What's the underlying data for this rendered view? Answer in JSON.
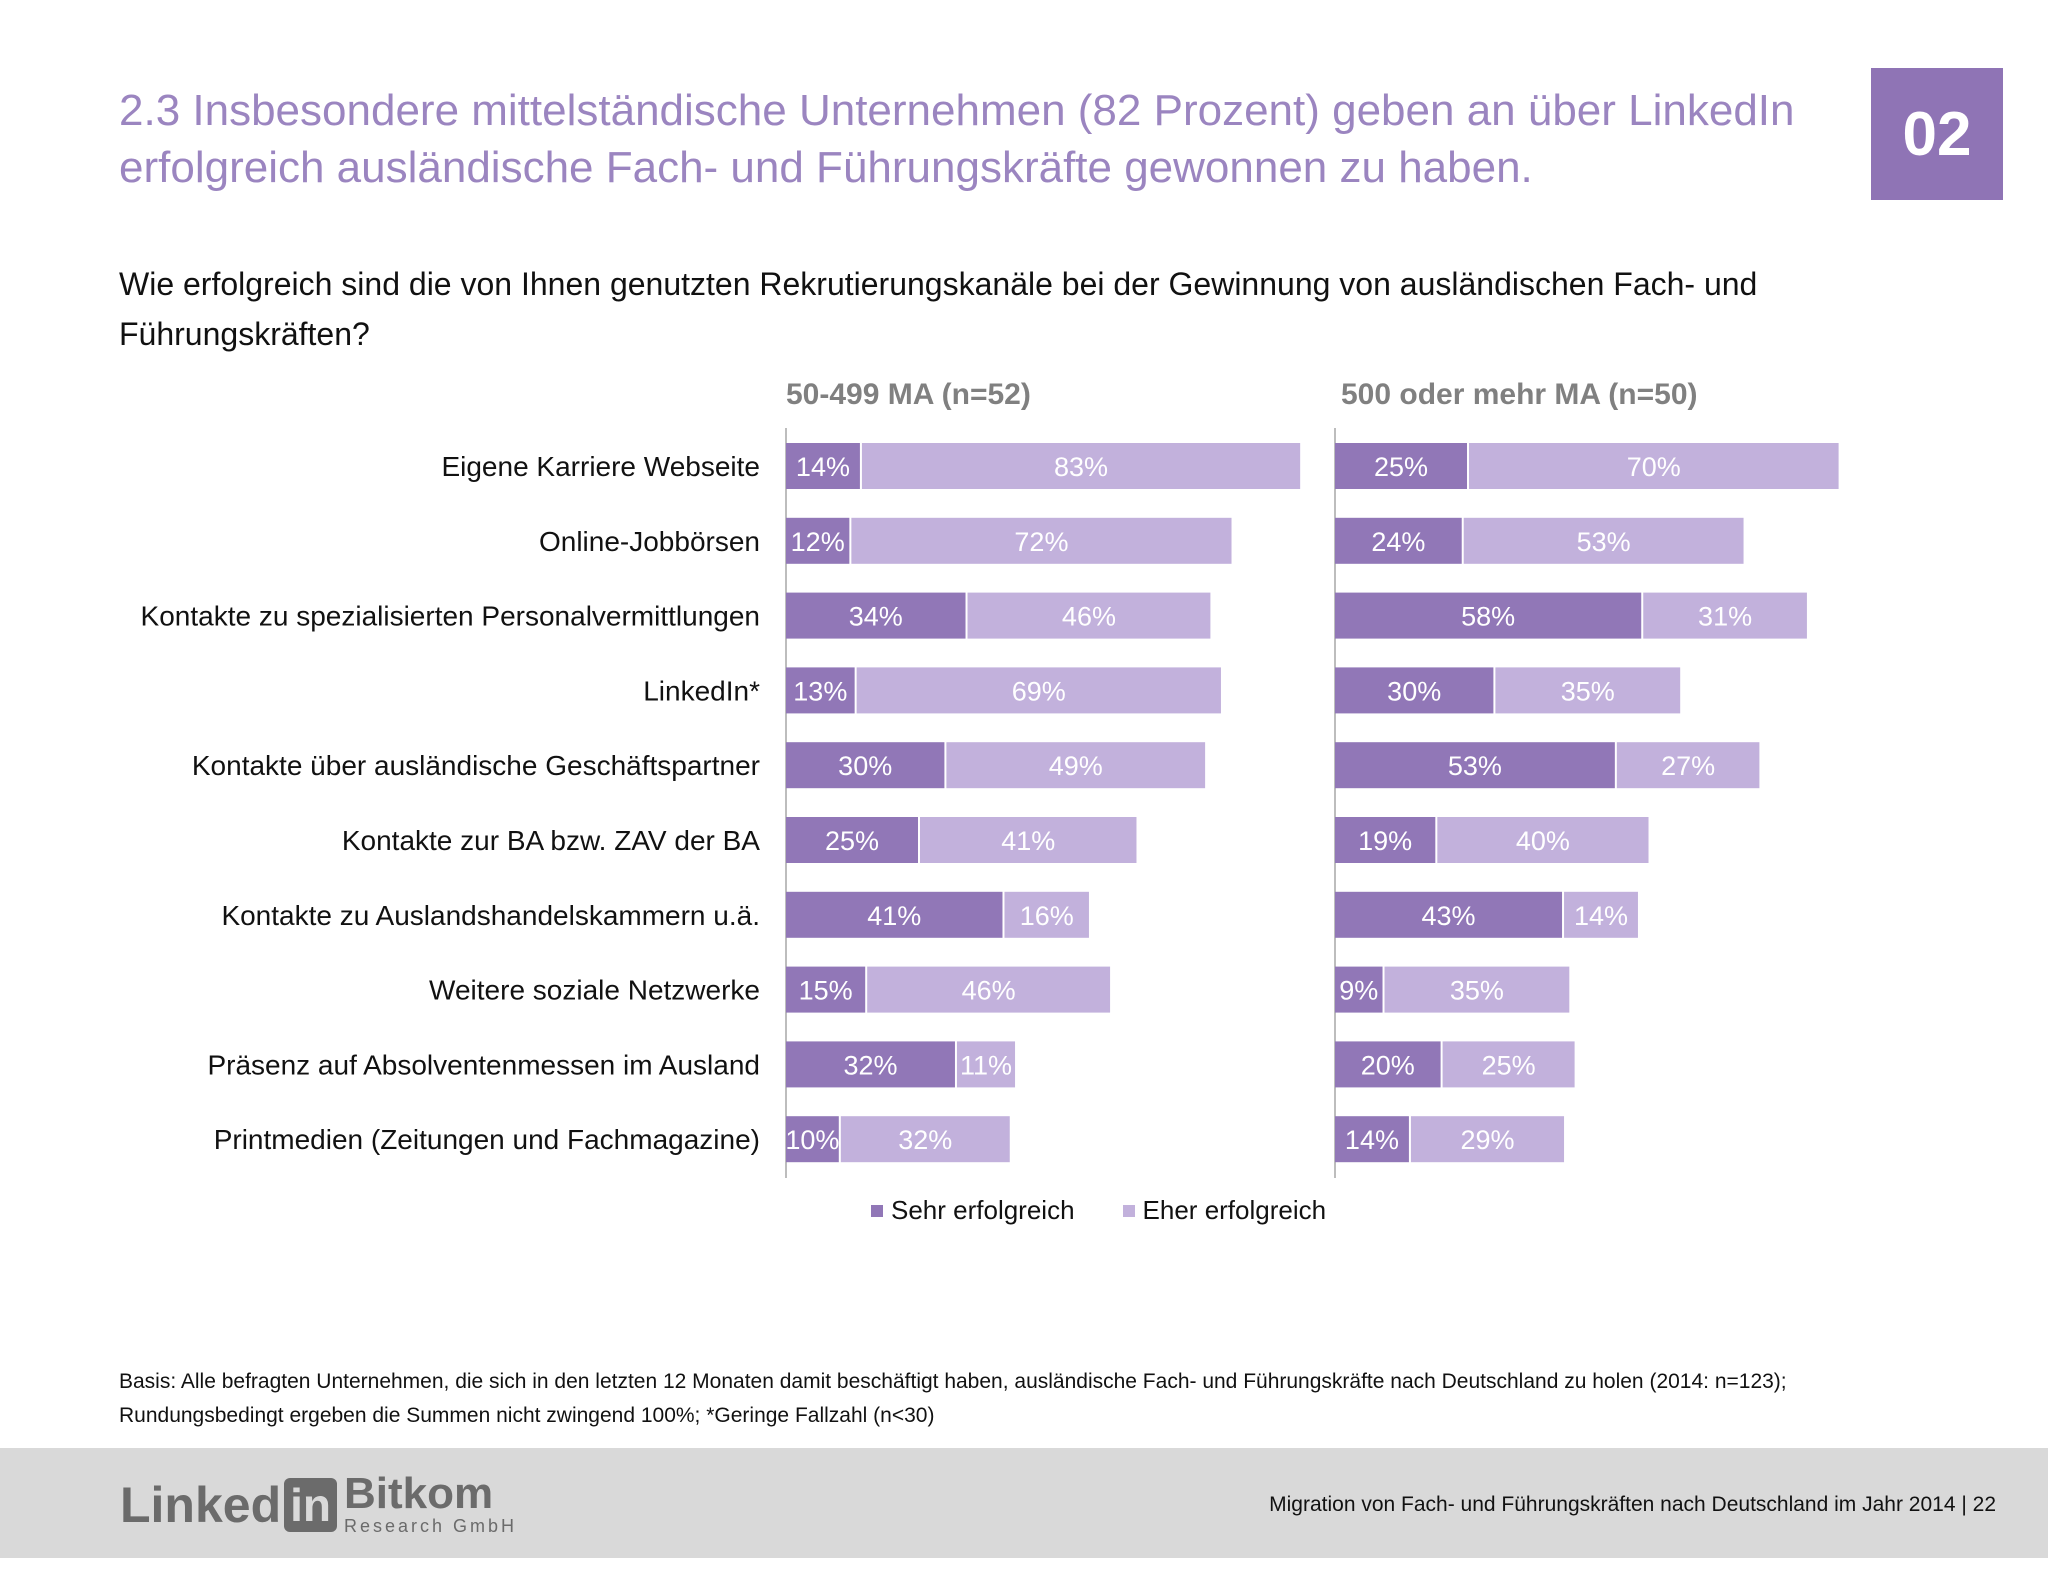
{
  "title": "2.3 Insbesondere mittelständische Unternehmen (82 Prozent) geben an über LinkedIn erfolgreich ausländische Fach- und Führungskräfte gewonnen zu haben.",
  "badge": "02",
  "question": "Wie erfolgreich sind die von Ihnen genutzten Rekrutierungskanäle bei der Gewinnung von ausländischen Fach- und Führungskräften?",
  "colors": {
    "sehr": "#9177b7",
    "eher": "#c2b1dc",
    "title": "#9b85c0",
    "footer_bg": "#d9d9d9"
  },
  "chart_data": {
    "type": "bar",
    "orientation": "horizontal",
    "stacked": true,
    "categories": [
      "Eigene Karriere Webseite",
      "Online-Jobbörsen",
      "Kontakte zu spezialisierten Personalvermittlungen",
      "LinkedIn*",
      "Kontakte über ausländische Geschäftspartner",
      "Kontakte zur BA bzw. ZAV der BA",
      "Kontakte zu Auslandshandelskammern u.ä.",
      "Weitere soziale Netzwerke",
      "Präsenz auf Absolventenmessen im Ausland",
      "Printmedien (Zeitungen und Fachmagazine)"
    ],
    "legend": [
      "Sehr erfolgreich",
      "Eher erfolgreich"
    ],
    "legend_position": "bottom",
    "unit": "%",
    "panels": [
      {
        "title": "50-499 MA (n=52)",
        "series": [
          {
            "name": "Sehr erfolgreich",
            "values": [
              14,
              12,
              34,
              13,
              30,
              25,
              41,
              15,
              32,
              10
            ]
          },
          {
            "name": "Eher erfolgreich",
            "values": [
              83,
              72,
              46,
              69,
              49,
              41,
              16,
              46,
              11,
              32
            ]
          }
        ]
      },
      {
        "title": "500 oder mehr MA (n=50)",
        "series": [
          {
            "name": "Sehr erfolgreich",
            "values": [
              25,
              24,
              58,
              30,
              53,
              19,
              43,
              9,
              20,
              14
            ]
          },
          {
            "name": "Eher erfolgreich",
            "values": [
              70,
              53,
              31,
              35,
              27,
              40,
              14,
              35,
              25,
              29
            ]
          }
        ]
      }
    ]
  },
  "footnote": "Basis: Alle befragten Unternehmen, die sich in den letzten 12 Monaten damit beschäftigt haben, ausländische Fach- und Führungskräfte nach Deutschland zu holen (2014: n=123); Rundungsbedingt ergeben die Summen nicht zwingend 100%; *Geringe Fallzahl (n<30)",
  "footer": {
    "logo_linkedin_text": "Linked",
    "logo_linkedin_box": "in",
    "logo_bitkom_text": "Bitkom",
    "logo_bitkom_sub": "Research GmbH",
    "text": "Migration von Fach- und Führungskräften nach Deutschland im Jahr 2014  |  22"
  }
}
